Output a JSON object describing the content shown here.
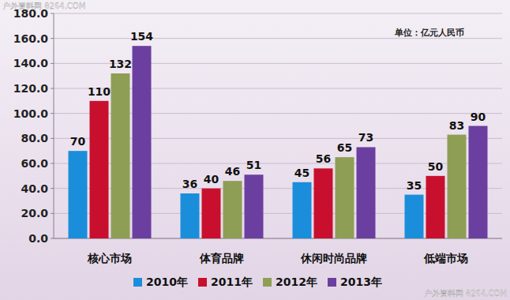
{
  "chart_data": {
    "type": "bar",
    "categories": [
      "核心市场",
      "体育品牌",
      "休闲时尚品牌",
      "低端市场"
    ],
    "series": [
      {
        "name": "2010年",
        "color": "#1b8edb",
        "values": [
          70,
          36,
          45,
          35
        ]
      },
      {
        "name": "2011年",
        "color": "#c8102e",
        "values": [
          110,
          40,
          56,
          50
        ]
      },
      {
        "name": "2012年",
        "color": "#8f9e55",
        "values": [
          132,
          46,
          65,
          83
        ]
      },
      {
        "name": "2013年",
        "color": "#6b3fa0",
        "values": [
          154,
          51,
          73,
          90
        ]
      }
    ],
    "ylim": [
      0,
      180
    ],
    "yticks": [
      {
        "value": 0,
        "label": "0.0"
      },
      {
        "value": 20,
        "label": "20.0"
      },
      {
        "value": 40,
        "label": "40.0"
      },
      {
        "value": 60,
        "label": "60.0"
      },
      {
        "value": 80,
        "label": "80.0"
      },
      {
        "value": 100,
        "label": "100.0"
      },
      {
        "value": 120,
        "label": "120.0"
      },
      {
        "value": 140,
        "label": "140.0"
      },
      {
        "value": 160,
        "label": "160.0"
      },
      {
        "value": 180,
        "label": "180.0"
      }
    ],
    "grid": true,
    "data_labels": true,
    "legend": "bottom",
    "annotations": [
      "单位：亿元人民币"
    ],
    "watermark": "户外资料网 8264.COM"
  }
}
